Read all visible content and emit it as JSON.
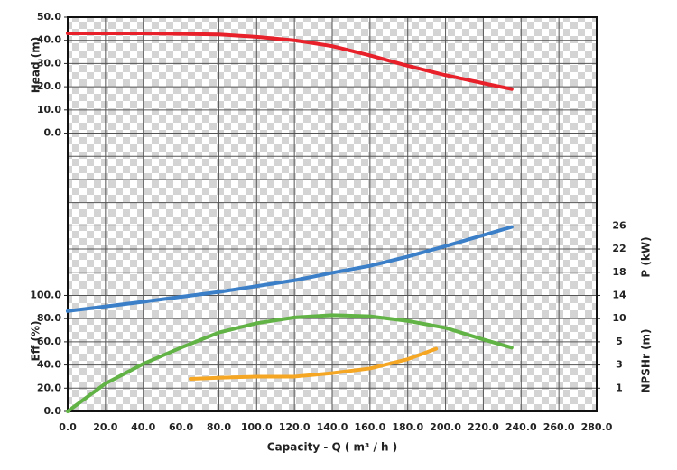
{
  "chart_data": {
    "type": "line",
    "x_label": "Capacity - Q ( m³ / h )",
    "xlim": [
      0,
      280
    ],
    "xticks": [
      {
        "value": 0,
        "label": "0.0"
      },
      {
        "value": 20,
        "label": "20.0"
      },
      {
        "value": 40,
        "label": "40.0"
      },
      {
        "value": 60,
        "label": "60.0"
      },
      {
        "value": 80,
        "label": "80.0"
      },
      {
        "value": 100,
        "label": "100.0"
      },
      {
        "value": 120,
        "label": "120.0"
      },
      {
        "value": 140,
        "label": "140.0"
      },
      {
        "value": 160,
        "label": "160.0"
      },
      {
        "value": 180,
        "label": "180.0"
      },
      {
        "value": 200,
        "label": "200.0"
      },
      {
        "value": 220,
        "label": "220.0"
      },
      {
        "value": 240,
        "label": "240.0"
      },
      {
        "value": 260,
        "label": "260.0"
      },
      {
        "value": 280,
        "label": "280.0"
      }
    ],
    "grid": true,
    "axes": [
      {
        "label": "Head (m)",
        "side": "left",
        "ylim": [
          -120,
          50
        ],
        "yticks": [
          {
            "value": 50,
            "label": "50.0"
          },
          {
            "value": 40,
            "label": "40.0"
          },
          {
            "value": 30,
            "label": "30.0"
          },
          {
            "value": 20,
            "label": "20.0"
          },
          {
            "value": 10,
            "label": "10.0"
          },
          {
            "value": 0,
            "label": "0.0"
          }
        ]
      },
      {
        "label": "Eff (%)",
        "side": "left",
        "ylim": [
          0,
          340
        ],
        "yticks": [
          {
            "value": 100,
            "label": "100.0"
          },
          {
            "value": 80,
            "label": "80.0"
          },
          {
            "value": 60,
            "label": "60.0"
          },
          {
            "value": 40,
            "label": "40.0"
          },
          {
            "value": 20,
            "label": "20.0"
          },
          {
            "value": 0,
            "label": "0.0"
          }
        ]
      },
      {
        "label": "P (kW)",
        "side": "right",
        "ylim": [
          -6,
          62
        ],
        "yticks": [
          26,
          22,
          18,
          14,
          10
        ]
      },
      {
        "label": "NPSHr (m)",
        "side": "right",
        "ylim": [
          -1,
          33
        ],
        "yticks": [
          5,
          3,
          1
        ]
      }
    ],
    "series": [
      {
        "name": "Head",
        "axis": 0,
        "color": "#e8202a",
        "x": [
          0,
          40,
          80,
          100,
          120,
          140,
          160,
          180,
          200,
          220,
          235
        ],
        "values": [
          43,
          43,
          42.5,
          41.5,
          40,
          37.5,
          33.5,
          29,
          25,
          21.5,
          19
        ]
      },
      {
        "name": "P",
        "axis": 2,
        "color": "#3a7fc8",
        "x": [
          0,
          40,
          80,
          120,
          140,
          160,
          180,
          200,
          220,
          235
        ],
        "values": [
          11.3,
          12.9,
          14.6,
          16.6,
          17.9,
          19.1,
          20.7,
          22.5,
          24.4,
          25.8
        ]
      },
      {
        "name": "Eff",
        "axis": 1,
        "color": "#62b346",
        "x": [
          0,
          20,
          40,
          60,
          80,
          100,
          120,
          140,
          160,
          180,
          200,
          220,
          235
        ],
        "values": [
          0,
          24,
          41,
          55,
          68,
          76,
          81,
          83,
          82,
          78,
          72,
          62,
          55
        ]
      },
      {
        "name": "NPSHr",
        "axis": 3,
        "color": "#f5a623",
        "x": [
          65,
          80,
          100,
          120,
          140,
          160,
          180,
          195
        ],
        "values": [
          1.8,
          1.9,
          2.0,
          2.0,
          2.3,
          2.7,
          3.5,
          4.4
        ]
      }
    ]
  }
}
